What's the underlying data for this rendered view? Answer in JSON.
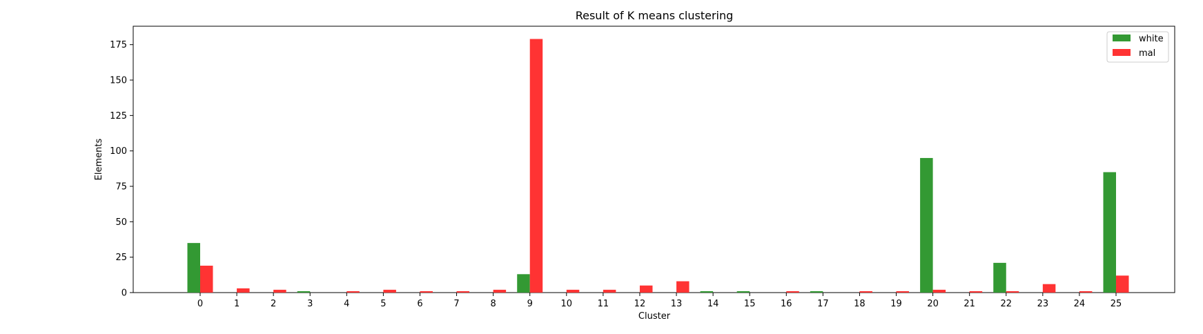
{
  "chart_data": {
    "type": "bar",
    "title": "Result of K means clustering",
    "xlabel": "Cluster",
    "ylabel": "Elements",
    "categories": [
      "0",
      "1",
      "2",
      "3",
      "4",
      "5",
      "6",
      "7",
      "8",
      "9",
      "10",
      "11",
      "12",
      "13",
      "14",
      "15",
      "16",
      "17",
      "18",
      "19",
      "20",
      "21",
      "22",
      "23",
      "24",
      "25"
    ],
    "series": [
      {
        "name": "white",
        "color": "#339933",
        "values": [
          35,
          0,
          0,
          1,
          0,
          0,
          0,
          0,
          0,
          13,
          0,
          0,
          0,
          0,
          1,
          1,
          0,
          1,
          0,
          0,
          95,
          0,
          21,
          0,
          0,
          85
        ]
      },
      {
        "name": "mal",
        "color": "#ff3333",
        "values": [
          19,
          3,
          2,
          0,
          1,
          2,
          1,
          1,
          2,
          179,
          2,
          2,
          5,
          8,
          0,
          0,
          1,
          0,
          1,
          1,
          2,
          1,
          1,
          6,
          1,
          12
        ]
      }
    ],
    "yticks": [
      0,
      25,
      50,
      75,
      100,
      125,
      150,
      175
    ],
    "ylim": [
      0,
      188
    ],
    "legend_position": "top-right",
    "grid": false
  }
}
